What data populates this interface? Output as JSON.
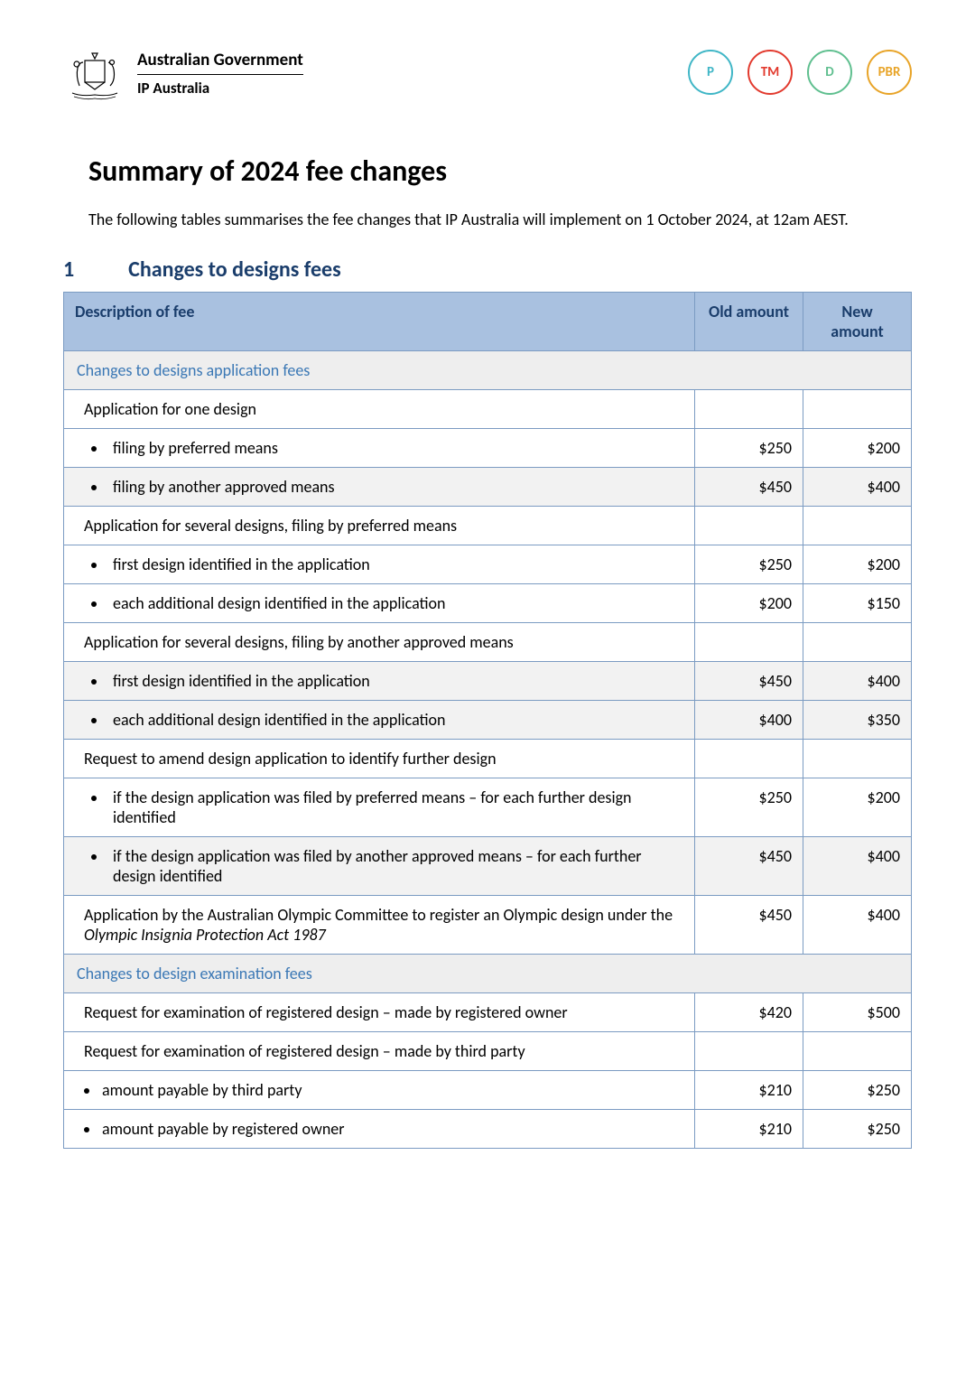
{
  "header": {
    "gov_line1": "Australian Government",
    "gov_line2": "IP Australia",
    "circles": [
      {
        "label": "P",
        "color": "#3fb6c6"
      },
      {
        "label": "TM",
        "color": "#e23a2e"
      },
      {
        "label": "D",
        "color": "#5fbf8f"
      },
      {
        "label": "PBR",
        "color": "#e8a428"
      }
    ]
  },
  "title": "Summary of 2024 fee changes",
  "intro": "The following tables summarises the fee changes that IP Australia will implement on 1 October 2024, at 12am AEST.",
  "section": {
    "num": "1",
    "title": "Changes to designs fees"
  },
  "table": {
    "columns": [
      "Description of fee",
      "Old amount",
      "New amount"
    ],
    "column_widths": [
      "700px",
      "120px",
      "120px"
    ],
    "header_bg": "#a9c1e0",
    "header_text_color": "#1a3d6b",
    "subheader_bg": "#eeeeee",
    "subheader_text_color": "#3b78b5",
    "shaded_bg": "#f2f2f2",
    "border_color": "#7b9bc2",
    "rows": [
      {
        "type": "subheader",
        "desc": "Changes to designs application fees"
      },
      {
        "type": "plain",
        "desc": "Application for one design",
        "old": "",
        "new": ""
      },
      {
        "type": "bullet",
        "desc": "filing by preferred means",
        "old": "$250",
        "new": "$200"
      },
      {
        "type": "bullet",
        "shaded": true,
        "desc": "filing by another approved means",
        "old": "$450",
        "new": "$400"
      },
      {
        "type": "plain",
        "desc": "Application for several designs, filing by preferred means",
        "old": "",
        "new": ""
      },
      {
        "type": "bullet",
        "desc": "first design identified in the application",
        "old": "$250",
        "new": "$200"
      },
      {
        "type": "bullet",
        "desc": "each additional design identified in the application",
        "old": "$200",
        "new": "$150"
      },
      {
        "type": "plain",
        "desc": "Application for several designs, filing by another approved means",
        "old": "",
        "new": ""
      },
      {
        "type": "bullet",
        "shaded": true,
        "desc": "first design identified in the application",
        "old": "$450",
        "new": "$400"
      },
      {
        "type": "bullet",
        "shaded": true,
        "desc": "each additional design identified in the application",
        "old": "$400",
        "new": "$350"
      },
      {
        "type": "plain",
        "desc": "Request to amend design application to identify further design",
        "old": "",
        "new": ""
      },
      {
        "type": "bullet",
        "desc": "if the design application was filed by preferred means – for each further design identified",
        "old": "$250",
        "new": "$200"
      },
      {
        "type": "bullet",
        "shaded": true,
        "desc": "if the design application was filed by another approved means – for each further design identified",
        "old": "$450",
        "new": "$400"
      },
      {
        "type": "plain",
        "desc": "Application by the Australian Olympic Committee to register an Olympic design under the ",
        "italic_suffix": "Olympic Insignia Protection Act 1987",
        "old": "$450",
        "new": "$400"
      },
      {
        "type": "subheader",
        "desc": "Changes to design examination fees"
      },
      {
        "type": "plain",
        "desc": "Request for examination of registered design – made by registered owner",
        "old": "$420",
        "new": "$500"
      },
      {
        "type": "plain",
        "desc": "Request for examination of registered design – made by third party",
        "old": "",
        "new": ""
      },
      {
        "type": "bullet",
        "tight": true,
        "desc": "amount payable by third party",
        "old": "$210",
        "new": "$250"
      },
      {
        "type": "bullet",
        "tight": true,
        "desc": "amount payable by registered owner",
        "old": "$210",
        "new": "$250"
      }
    ]
  }
}
